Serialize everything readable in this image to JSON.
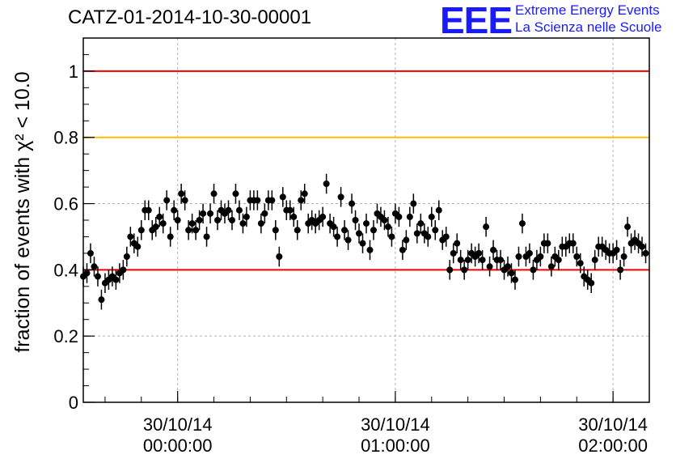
{
  "header": {
    "run_title": "CATZ-01-2014-10-30-00001",
    "logo_mark": "EEE",
    "logo_line1": "Extreme Energy Events",
    "logo_line2": "La Scienza nelle Scuole"
  },
  "colors": {
    "limit_red": "#ee0000",
    "limit_orange": "#ffbf00",
    "logo_blue": "#1a1aff",
    "grid": "#b0b0b0",
    "points": "#000000"
  },
  "chart_data": {
    "type": "scatter",
    "ylabel": "fraction of events with χ² < 10.0",
    "ylim": [
      0,
      1.1
    ],
    "x_unit": "minutes",
    "xlim": [
      -26,
      130
    ],
    "grid": true,
    "yticks": [
      {
        "value": 0,
        "label": "0"
      },
      {
        "value": 0.2,
        "label": "0.2"
      },
      {
        "value": 0.4,
        "label": "0.4"
      },
      {
        "value": 0.6,
        "label": "0.6"
      },
      {
        "value": 0.8,
        "label": "0.8"
      },
      {
        "value": 1.0,
        "label": "1"
      }
    ],
    "xticks": [
      {
        "value": 0,
        "date": "30/10/14",
        "time": "00:00:00"
      },
      {
        "value": 60,
        "date": "30/10/14",
        "time": "01:00:00"
      },
      {
        "value": 120,
        "date": "30/10/14",
        "time": "02:00:00"
      }
    ],
    "reference_lines": [
      {
        "y": 1.0,
        "color": "#ee0000"
      },
      {
        "y": 0.8,
        "color": "#ffbf00"
      },
      {
        "y": 0.4,
        "color": "#ee0000"
      }
    ],
    "series": [
      {
        "error": 0.03,
        "x": [
          -26,
          -25,
          -24,
          -23,
          -22,
          -21,
          -20,
          -19,
          -18,
          -17,
          -16,
          -15,
          -14,
          -13,
          -12,
          -11,
          -10,
          -9,
          -8,
          -7,
          -6,
          -5,
          -4,
          -3,
          -2,
          -1,
          0,
          1,
          2,
          3,
          4,
          5,
          6,
          7,
          8,
          9,
          10,
          11,
          12,
          13,
          14,
          15,
          16,
          17,
          18,
          19,
          20,
          21,
          22,
          23,
          24,
          25,
          26,
          27,
          28,
          29,
          30,
          31,
          32,
          33,
          34,
          35,
          36,
          37,
          38,
          39,
          40,
          41,
          42,
          43,
          44,
          45,
          46,
          47,
          48,
          49,
          50,
          51,
          52,
          53,
          54,
          55,
          56,
          57,
          58,
          59,
          60,
          61,
          62,
          63,
          64,
          65,
          66,
          67,
          68,
          69,
          70,
          71,
          72,
          73,
          74,
          75,
          76,
          77,
          78,
          79,
          80,
          81,
          82,
          83,
          84,
          85,
          86,
          87,
          88,
          89,
          90,
          91,
          92,
          93,
          94,
          95,
          96,
          97,
          98,
          99,
          100,
          101,
          102,
          103,
          104,
          105,
          106,
          107,
          108,
          109,
          110,
          111,
          112,
          113,
          114,
          115,
          116,
          117,
          118,
          119,
          120,
          121,
          122,
          123,
          124,
          125,
          126,
          127,
          128,
          129
        ],
        "y": [
          0.38,
          0.39,
          0.45,
          0.41,
          0.38,
          0.31,
          0.36,
          0.37,
          0.38,
          0.37,
          0.39,
          0.4,
          0.44,
          0.5,
          0.48,
          0.47,
          0.52,
          0.58,
          0.58,
          0.52,
          0.53,
          0.56,
          0.54,
          0.61,
          0.5,
          0.58,
          0.55,
          0.63,
          0.61,
          0.52,
          0.54,
          0.52,
          0.55,
          0.57,
          0.5,
          0.57,
          0.63,
          0.55,
          0.58,
          0.57,
          0.58,
          0.55,
          0.63,
          0.58,
          0.54,
          0.56,
          0.61,
          0.61,
          0.61,
          0.54,
          0.57,
          0.61,
          0.61,
          0.52,
          0.44,
          0.62,
          0.58,
          0.58,
          0.56,
          0.52,
          0.61,
          0.63,
          0.54,
          0.55,
          0.54,
          0.55,
          0.56,
          0.66,
          0.54,
          0.53,
          0.5,
          0.62,
          0.52,
          0.49,
          0.6,
          0.55,
          0.51,
          0.48,
          0.54,
          0.46,
          0.52,
          0.57,
          0.56,
          0.55,
          0.53,
          0.5,
          0.57,
          0.56,
          0.46,
          0.49,
          0.56,
          0.6,
          0.51,
          0.54,
          0.51,
          0.5,
          0.56,
          0.52,
          0.58,
          0.49,
          0.5,
          0.4,
          0.45,
          0.48,
          0.43,
          0.4,
          0.43,
          0.45,
          0.44,
          0.45,
          0.43,
          0.53,
          0.41,
          0.46,
          0.43,
          0.43,
          0.4,
          0.41,
          0.39,
          0.37,
          0.44,
          0.54,
          0.44,
          0.45,
          0.4,
          0.43,
          0.44,
          0.48,
          0.48,
          0.41,
          0.44,
          0.43,
          0.47,
          0.47,
          0.48,
          0.48,
          0.44,
          0.42,
          0.38,
          0.37,
          0.36,
          0.43,
          0.47,
          0.47,
          0.46,
          0.45,
          0.45,
          0.46,
          0.4,
          0.44,
          0.53,
          0.48,
          0.49,
          0.48,
          0.47,
          0.45
        ]
      }
    ]
  }
}
